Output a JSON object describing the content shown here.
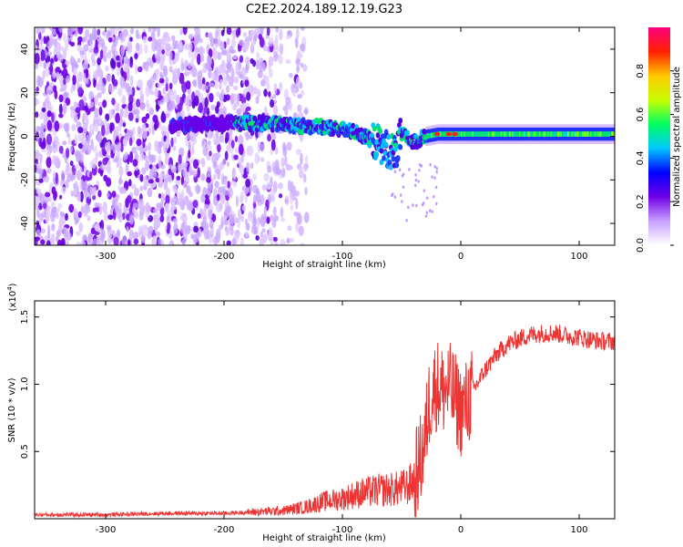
{
  "title": "C2E2.2024.189.12.19.G23",
  "chart_data": [
    {
      "type": "heatmap",
      "xlabel": "Height of straight line (km)",
      "ylabel": "Frequency (Hz)",
      "xlim": [
        -360,
        130
      ],
      "ylim": [
        -50,
        50
      ],
      "xticks": [
        -300,
        -200,
        -100,
        0,
        100
      ],
      "yticks": [
        -40,
        -20,
        0,
        20,
        40
      ],
      "grid": false,
      "colorbar": {
        "label": "Normalized spectral amplitude",
        "range": [
          0,
          1
        ],
        "ticks": [
          "0.0",
          "0.2",
          "0.4",
          "0.6",
          "0.8"
        ],
        "colors": [
          "#ffffff",
          "#c8a0ff",
          "#7000e6",
          "#0000ff",
          "#00c8ff",
          "#00ff60",
          "#c8ff00",
          "#ffc800",
          "#ff2000",
          "#ff0080"
        ]
      },
      "features": {
        "noise_region": [
          -360,
          -150
        ],
        "signal_trace": [
          [
            -245,
            5
          ],
          [
            -200,
            6
          ],
          [
            -170,
            6
          ],
          [
            -140,
            5
          ],
          [
            -110,
            4
          ],
          [
            -90,
            2
          ],
          [
            -70,
            -3
          ],
          [
            -55,
            -8
          ],
          [
            -50,
            1
          ],
          [
            -40,
            -3
          ],
          [
            -30,
            0
          ],
          [
            -20,
            1
          ],
          [
            0,
            1
          ],
          [
            50,
            1
          ],
          [
            100,
            1
          ],
          [
            130,
            1
          ]
        ],
        "peak_points": [
          [
            -20,
            1
          ],
          [
            -10,
            1
          ],
          [
            -5,
            1
          ]
        ]
      }
    },
    {
      "type": "line",
      "xlabel": "Height of straight line (km)",
      "ylabel": "SNR (10 * v/v)",
      "y_multiplier": "(x10",
      "y_multiplier_exp": "4",
      "y_multiplier_close": ")",
      "xlim": [
        -360,
        130
      ],
      "ylim": [
        0,
        1.62
      ],
      "xticks": [
        -300,
        -200,
        -100,
        0,
        100
      ],
      "yticks": [
        "0.5",
        "1.0",
        "1.5"
      ],
      "grid": false,
      "series": [
        {
          "color": "#ee3333",
          "x": [
            -360,
            -300,
            -250,
            -200,
            -175,
            -150,
            -130,
            -115,
            -100,
            -85,
            -70,
            -55,
            -45,
            -40,
            -35,
            -30,
            -27,
            -24,
            -20,
            -15,
            -10,
            -5,
            0,
            5,
            10,
            15,
            20,
            30,
            40,
            50,
            60,
            70,
            80,
            90,
            100,
            110,
            120,
            130
          ],
          "y": [
            0.03,
            0.03,
            0.04,
            0.04,
            0.05,
            0.06,
            0.09,
            0.13,
            0.15,
            0.19,
            0.21,
            0.22,
            0.24,
            0.28,
            0.4,
            0.6,
            0.85,
            0.95,
            1.0,
            0.95,
            0.98,
            0.9,
            0.8,
            0.85,
            0.95,
            1.02,
            1.1,
            1.22,
            1.3,
            1.34,
            1.37,
            1.38,
            1.38,
            1.36,
            1.35,
            1.33,
            1.32,
            1.32
          ]
        }
      ]
    }
  ]
}
